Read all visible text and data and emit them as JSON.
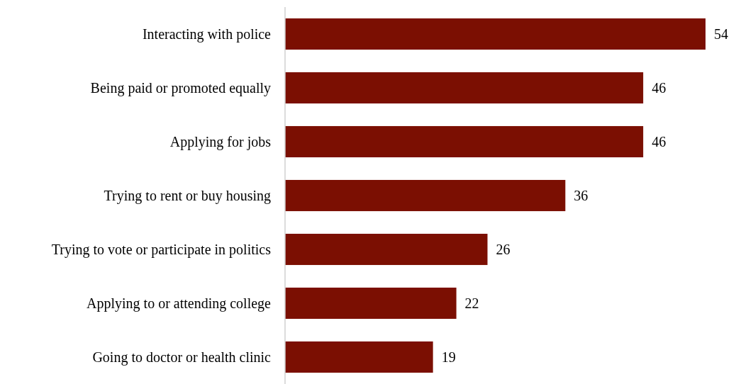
{
  "chart_data": {
    "type": "bar",
    "orientation": "horizontal",
    "categories": [
      "Interacting with police",
      "Being paid or promoted equally",
      "Applying for jobs",
      "Trying to rent or buy housing",
      "Trying to vote or participate in politics",
      "Applying to or attending college",
      "Going to doctor or health clinic"
    ],
    "values": [
      54,
      46,
      46,
      36,
      26,
      22,
      19
    ],
    "color": "#7b0f02",
    "data_labels": true
  }
}
